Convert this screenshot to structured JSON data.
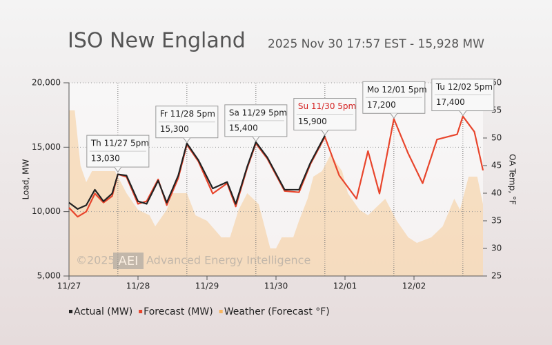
{
  "chart_data": {
    "type": "line",
    "title": "ISO New England",
    "subtitle": "2025 Nov 30 17:57 EST - 15,928 MW",
    "ylabel": "Load, MW",
    "y2label": "OA Temp, °F",
    "watermark": [
      "©2025",
      "AEI",
      "Advanced Energy Intelligence"
    ],
    "xlim": [
      0,
      144
    ],
    "xticks": [
      {
        "value": 0,
        "label": "11/27"
      },
      {
        "value": 24,
        "label": "11/28"
      },
      {
        "value": 48,
        "label": "11/29"
      },
      {
        "value": 72,
        "label": "11/30"
      },
      {
        "value": 96,
        "label": "12/01"
      },
      {
        "value": 120,
        "label": "12/02"
      }
    ],
    "ylim": [
      5000,
      20000
    ],
    "yticks": [
      {
        "value": 5000,
        "label": "5,000"
      },
      {
        "value": 10000,
        "label": "10,000"
      },
      {
        "value": 15000,
        "label": "15,000"
      },
      {
        "value": 20000,
        "label": "20,000"
      }
    ],
    "y2lim": [
      25,
      60
    ],
    "y2ticks": [
      25,
      30,
      35,
      40,
      45,
      50,
      55,
      60
    ],
    "grid": true,
    "x": [
      0,
      3,
      6,
      9,
      12,
      15,
      17,
      20,
      24,
      27,
      31,
      34,
      38,
      41,
      45,
      50,
      55,
      58,
      62,
      65,
      69,
      75,
      80,
      84,
      89,
      94,
      100,
      104,
      108,
      113,
      118,
      123,
      128,
      135,
      137,
      141,
      144
    ],
    "series": [
      {
        "name": "Weather (Forecast °F)",
        "color": "#f7b560",
        "axis": "y2",
        "x": [
          0,
          2,
          4,
          6,
          8,
          12,
          16,
          18,
          20,
          24,
          28,
          30,
          34,
          36,
          41,
          44,
          48,
          53,
          56,
          59,
          62,
          66,
          70,
          72,
          74,
          78,
          80,
          83,
          85,
          88,
          91,
          95,
          97,
          101,
          104,
          108,
          110,
          114,
          118,
          121,
          126,
          130,
          134,
          136,
          139,
          142,
          144
        ],
        "values": [
          55,
          55,
          45,
          42,
          44,
          44,
          44,
          42,
          40,
          37,
          36,
          34,
          37,
          40,
          40,
          36,
          35,
          32,
          32,
          37,
          40,
          38,
          30,
          30,
          32,
          32,
          35,
          39,
          43,
          44,
          47,
          44,
          40,
          37,
          36,
          38,
          39,
          35,
          32,
          31,
          32,
          34,
          39,
          37,
          43,
          43,
          38
        ]
      },
      {
        "name": "Forecast (MW)",
        "color": "#e8452c",
        "values": [
          10300,
          9600,
          10000,
          11400,
          10700,
          11200,
          12900,
          12700,
          10600,
          10800,
          12500,
          10500,
          12600,
          15200,
          13900,
          11400,
          12200,
          10400,
          13400,
          15300,
          14100,
          11600,
          11500,
          13700,
          15800,
          12800,
          11000,
          14700,
          11400,
          17200,
          14500,
          12200,
          15600,
          16000,
          17400,
          16200,
          13200
        ]
      },
      {
        "name": "Actual (MW)",
        "color": "#222222",
        "values": [
          10700,
          10200,
          10500,
          11700,
          10800,
          11400,
          12900,
          12800,
          10800,
          10600,
          12400,
          10700,
          12800,
          15300,
          14000,
          11800,
          12300,
          10600,
          13500,
          15400,
          14200,
          11700,
          11700,
          13800,
          15900,
          null,
          null,
          null,
          null,
          null,
          null,
          null,
          null,
          null,
          null,
          null,
          null
        ]
      }
    ],
    "annotations": [
      {
        "x": 17,
        "label": "Th 11/27 5pm",
        "value": 13030,
        "value_label": "13,030"
      },
      {
        "x": 41,
        "label": "Fr 11/28 5pm",
        "value": 15300,
        "value_label": "15,300"
      },
      {
        "x": 65,
        "label": "Sa 11/29 5pm",
        "value": 15400,
        "value_label": "15,400"
      },
      {
        "x": 89,
        "label": "Su 11/30 5pm",
        "value": 15900,
        "value_label": "15,900",
        "color": "#d42020"
      },
      {
        "x": 113,
        "label": "Mo 12/01 5pm",
        "value": 17200,
        "value_label": "17,200"
      },
      {
        "x": 137,
        "label": "Tu 12/02 5pm",
        "value": 17400,
        "value_label": "17,400"
      }
    ]
  }
}
